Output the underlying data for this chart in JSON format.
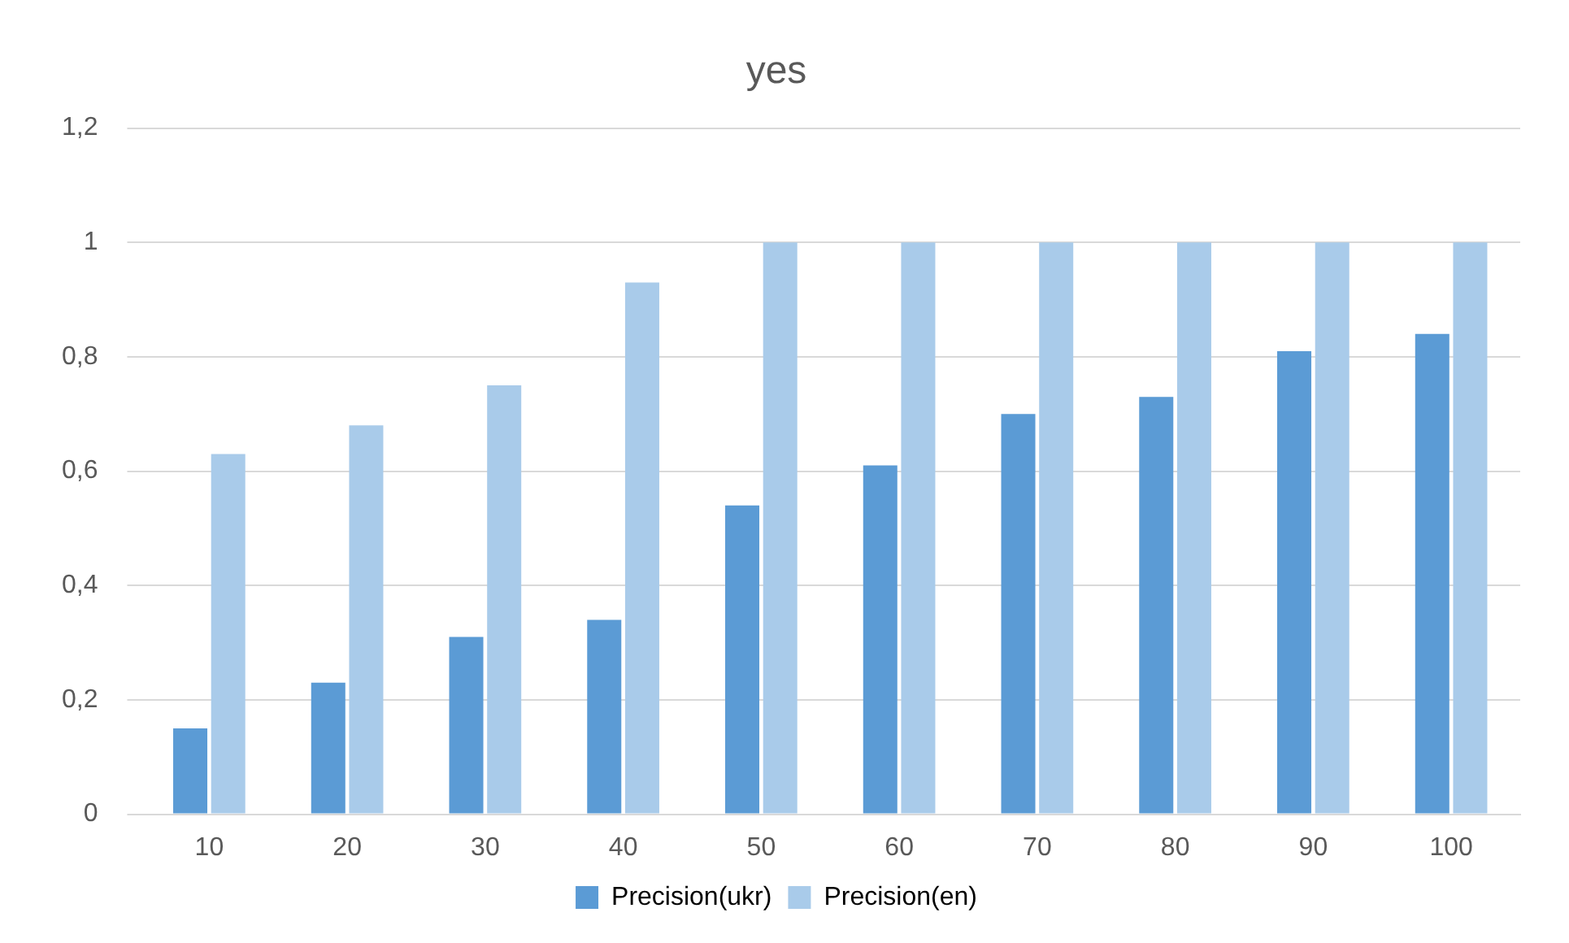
{
  "chart_data": {
    "type": "bar",
    "title": "yes",
    "categories": [
      "10",
      "20",
      "30",
      "40",
      "50",
      "60",
      "70",
      "80",
      "90",
      "100"
    ],
    "series": [
      {
        "name": "Precision(ukr)",
        "color": "#5b9bd5",
        "values": [
          0.15,
          0.23,
          0.31,
          0.34,
          0.54,
          0.61,
          0.7,
          0.73,
          0.81,
          0.84
        ]
      },
      {
        "name": "Precision(en)",
        "color": "#a9cbea",
        "values": [
          0.63,
          0.68,
          0.75,
          0.93,
          1,
          1,
          1,
          1,
          1,
          1
        ]
      }
    ],
    "ylim": [
      0,
      1.2
    ],
    "yticks": [
      0,
      {
        "value": 0.2,
        "label": "0,2"
      },
      {
        "value": 0.4,
        "label": "0,4"
      },
      {
        "value": 0.6,
        "label": "0,6"
      },
      {
        "value": 0.8,
        "label": "0,8"
      },
      1,
      {
        "value": 1.2,
        "label": "1,2"
      }
    ],
    "grid": "y",
    "legend": "bottom"
  }
}
